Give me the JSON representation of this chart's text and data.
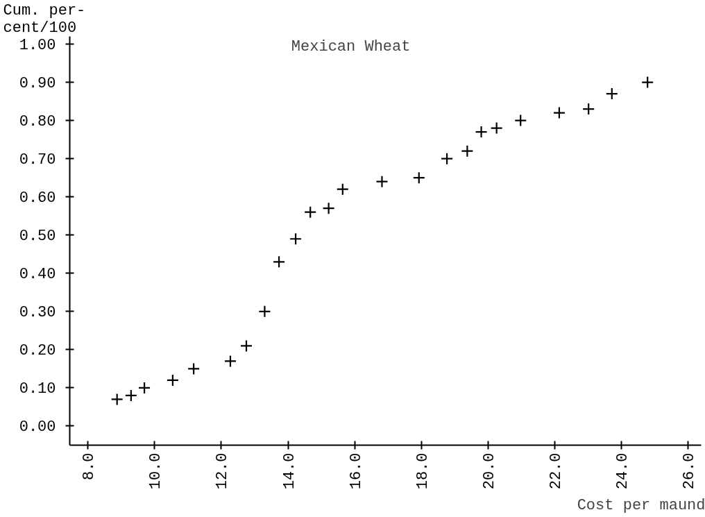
{
  "chart_data": {
    "type": "scatter",
    "title": "Mexican Wheat",
    "xlabel": "Cost per maund",
    "ylabel": "Cum. per-\ncent/100",
    "x": [
      8.87,
      9.29,
      9.69,
      10.54,
      11.17,
      12.27,
      12.75,
      13.3,
      13.73,
      14.23,
      14.67,
      15.22,
      15.64,
      16.82,
      17.93,
      18.77,
      19.38,
      19.8,
      20.26,
      20.98,
      22.14,
      23.02,
      23.72,
      24.79
    ],
    "values": [
      0.07,
      0.08,
      0.1,
      0.12,
      0.15,
      0.17,
      0.21,
      0.3,
      0.43,
      0.49,
      0.56,
      0.57,
      0.62,
      0.64,
      0.65,
      0.7,
      0.72,
      0.77,
      0.78,
      0.8,
      0.82,
      0.83,
      0.87,
      0.9
    ],
    "color": "#000000",
    "marker": "cross",
    "grid": false,
    "xlim": [
      7.45,
      26.4
    ],
    "ylim": [
      -0.05,
      1.02
    ],
    "xticks": [
      {
        "value": 8,
        "label": "8.0"
      },
      {
        "value": 10,
        "label": "10.0"
      },
      {
        "value": 12,
        "label": "12.0"
      },
      {
        "value": 14,
        "label": "14.0"
      },
      {
        "value": 16,
        "label": "16.0"
      },
      {
        "value": 18,
        "label": "18.0"
      },
      {
        "value": 20,
        "label": "20.0"
      },
      {
        "value": 22,
        "label": "22.0"
      },
      {
        "value": 24,
        "label": "24.0"
      },
      {
        "value": 26,
        "label": "26.0"
      }
    ],
    "yticks": [
      {
        "value": 0,
        "label": "0.00"
      },
      {
        "value": 0.1,
        "label": "0.10"
      },
      {
        "value": 0.2,
        "label": "0.20"
      },
      {
        "value": 0.3,
        "label": "0.30"
      },
      {
        "value": 0.4,
        "label": "0.40"
      },
      {
        "value": 0.5,
        "label": "0.50"
      },
      {
        "value": 0.6,
        "label": "0.60"
      },
      {
        "value": 0.7,
        "label": "0.70"
      },
      {
        "value": 0.8,
        "label": "0.80"
      },
      {
        "value": 0.9,
        "label": "0.90"
      },
      {
        "value": 1.0,
        "label": "1.00"
      }
    ]
  }
}
